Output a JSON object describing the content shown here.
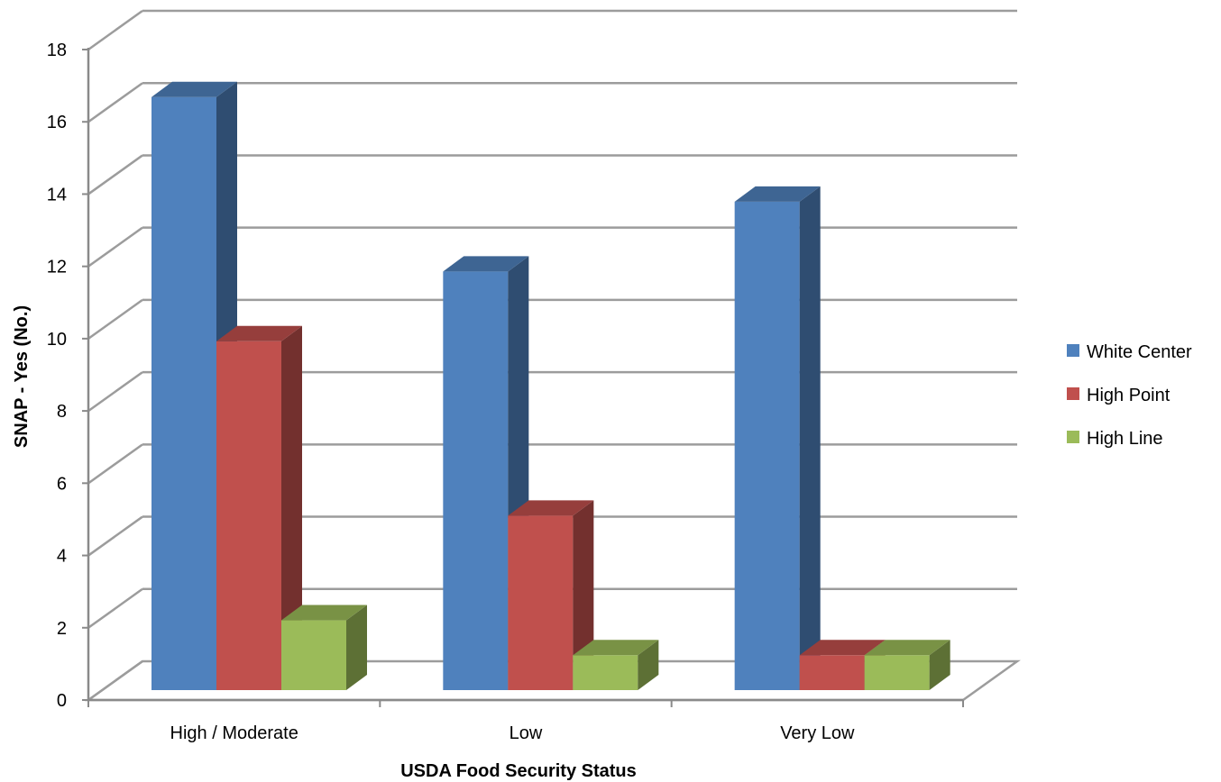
{
  "chart_data": {
    "type": "bar",
    "title": "",
    "xlabel": "USDA Food Security Status",
    "ylabel": "SNAP - Yes (No.)",
    "categories": [
      "High / Moderate",
      "Low",
      "Very Low"
    ],
    "series": [
      {
        "name": "White Center",
        "values": [
          17,
          12,
          14
        ],
        "color": "#4F81BD"
      },
      {
        "name": "High Point",
        "values": [
          10,
          5,
          1
        ],
        "color": "#C0504D"
      },
      {
        "name": "High Line",
        "values": [
          2,
          1,
          1
        ],
        "color": "#9BBB59"
      }
    ],
    "ylim": [
      0,
      18
    ],
    "yticks": [
      0,
      2,
      4,
      6,
      8,
      10,
      12,
      14,
      16,
      18
    ],
    "grid": true,
    "legend_position": "right",
    "style": "3d-column"
  }
}
